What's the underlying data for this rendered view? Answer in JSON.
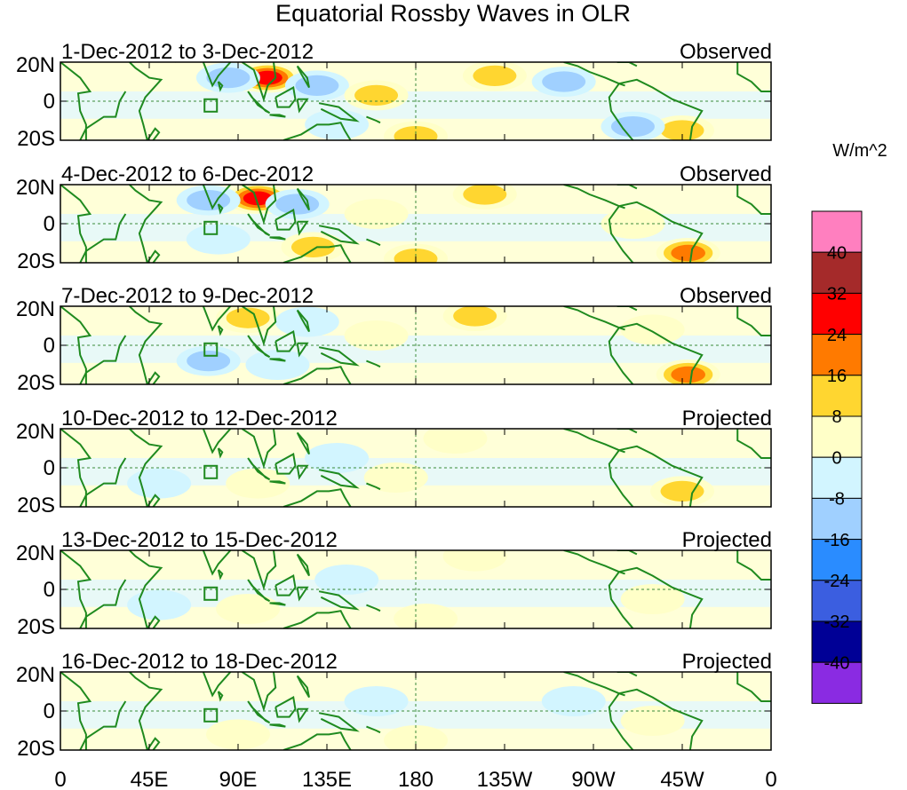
{
  "chart_data": {
    "type": "heatmap",
    "title": "Equatorial Rossby Waves in OLR",
    "units": "W/m^2",
    "y_ticks": [
      "20N",
      "0",
      "20S"
    ],
    "x_ticks": [
      "0",
      "45E",
      "90E",
      "135E",
      "180",
      "135W",
      "90W",
      "45W",
      "0"
    ],
    "x_range_deg_east": [
      0,
      360
    ],
    "y_range_deg_north": [
      -20,
      20
    ],
    "colorbar_levels": [
      -40,
      -32,
      -24,
      -16,
      -8,
      0,
      8,
      16,
      24,
      32,
      40
    ],
    "colorbar_labels": [
      "40",
      "32",
      "24",
      "16",
      "8",
      "0",
      "-8",
      "-16",
      "-24",
      "-32",
      "-40"
    ],
    "colorbar_colors": [
      "#ff7fbf",
      "#a52a2a",
      "#ff0000",
      "#ff7a00",
      "#ffd630",
      "#ffffc8",
      "#d2f5ff",
      "#a0d0ff",
      "#2a8cff",
      "#3b5ee0",
      "#000096",
      "#8a2be2"
    ],
    "panels": [
      {
        "date_label": "1-Dec-2012 to 3-Dec-2012",
        "status": "Observed",
        "anomalies": [
          {
            "lon": 105,
            "lat": 12,
            "value": 32
          },
          {
            "lon": 85,
            "lat": 12,
            "value": -16
          },
          {
            "lon": 130,
            "lat": 8,
            "value": -16
          },
          {
            "lon": 160,
            "lat": 3,
            "value": 16
          },
          {
            "lon": 220,
            "lat": 13,
            "value": 16
          },
          {
            "lon": 315,
            "lat": -15,
            "value": 16
          },
          {
            "lon": 290,
            "lat": -13,
            "value": -16
          },
          {
            "lon": 180,
            "lat": -18,
            "value": 16
          },
          {
            "lon": 255,
            "lat": 10,
            "value": -16
          },
          {
            "lon": 140,
            "lat": -12,
            "value": -8
          }
        ]
      },
      {
        "date_label": "4-Dec-2012 to 6-Dec-2012",
        "status": "Observed",
        "anomalies": [
          {
            "lon": 100,
            "lat": 13,
            "value": 32
          },
          {
            "lon": 75,
            "lat": 12,
            "value": -16
          },
          {
            "lon": 120,
            "lat": 10,
            "value": -16
          },
          {
            "lon": 215,
            "lat": 15,
            "value": 16
          },
          {
            "lon": 318,
            "lat": -15,
            "value": 24
          },
          {
            "lon": 160,
            "lat": 5,
            "value": 8
          },
          {
            "lon": 128,
            "lat": -12,
            "value": 16
          },
          {
            "lon": 80,
            "lat": -8,
            "value": -8
          },
          {
            "lon": 290,
            "lat": 0,
            "value": 8
          },
          {
            "lon": 180,
            "lat": -18,
            "value": 16
          }
        ]
      },
      {
        "date_label": "7-Dec-2012 to 9-Dec-2012",
        "status": "Observed",
        "anomalies": [
          {
            "lon": 95,
            "lat": 14,
            "value": 16
          },
          {
            "lon": 75,
            "lat": -8,
            "value": -16
          },
          {
            "lon": 210,
            "lat": 15,
            "value": 16
          },
          {
            "lon": 318,
            "lat": -15,
            "value": 24
          },
          {
            "lon": 160,
            "lat": 5,
            "value": 8
          },
          {
            "lon": 110,
            "lat": -10,
            "value": -8
          },
          {
            "lon": 125,
            "lat": 12,
            "value": -8
          },
          {
            "lon": 300,
            "lat": 8,
            "value": 8
          }
        ]
      },
      {
        "date_label": "10-Dec-2012 to 12-Dec-2012",
        "status": "Projected",
        "anomalies": [
          {
            "lon": 100,
            "lat": -8,
            "value": 8
          },
          {
            "lon": 50,
            "lat": -8,
            "value": -8
          },
          {
            "lon": 315,
            "lat": -12,
            "value": 16
          },
          {
            "lon": 200,
            "lat": 15,
            "value": 8
          },
          {
            "lon": 140,
            "lat": 5,
            "value": -8
          },
          {
            "lon": 170,
            "lat": -5,
            "value": 8
          }
        ]
      },
      {
        "date_label": "13-Dec-2012 to 15-Dec-2012",
        "status": "Projected",
        "anomalies": [
          {
            "lon": 95,
            "lat": -10,
            "value": 8
          },
          {
            "lon": 50,
            "lat": -8,
            "value": -8
          },
          {
            "lon": 210,
            "lat": 17,
            "value": 8
          },
          {
            "lon": 185,
            "lat": -15,
            "value": 8
          },
          {
            "lon": 145,
            "lat": 5,
            "value": -8
          },
          {
            "lon": 300,
            "lat": -5,
            "value": 8
          }
        ]
      },
      {
        "date_label": "16-Dec-2012 to 18-Dec-2012",
        "status": "Projected",
        "anomalies": [
          {
            "lon": 90,
            "lat": -12,
            "value": 8
          },
          {
            "lon": 180,
            "lat": -15,
            "value": 8
          },
          {
            "lon": 160,
            "lat": 5,
            "value": -8
          },
          {
            "lon": 300,
            "lat": -5,
            "value": 8
          },
          {
            "lon": 260,
            "lat": 5,
            "value": -8
          }
        ]
      }
    ]
  }
}
